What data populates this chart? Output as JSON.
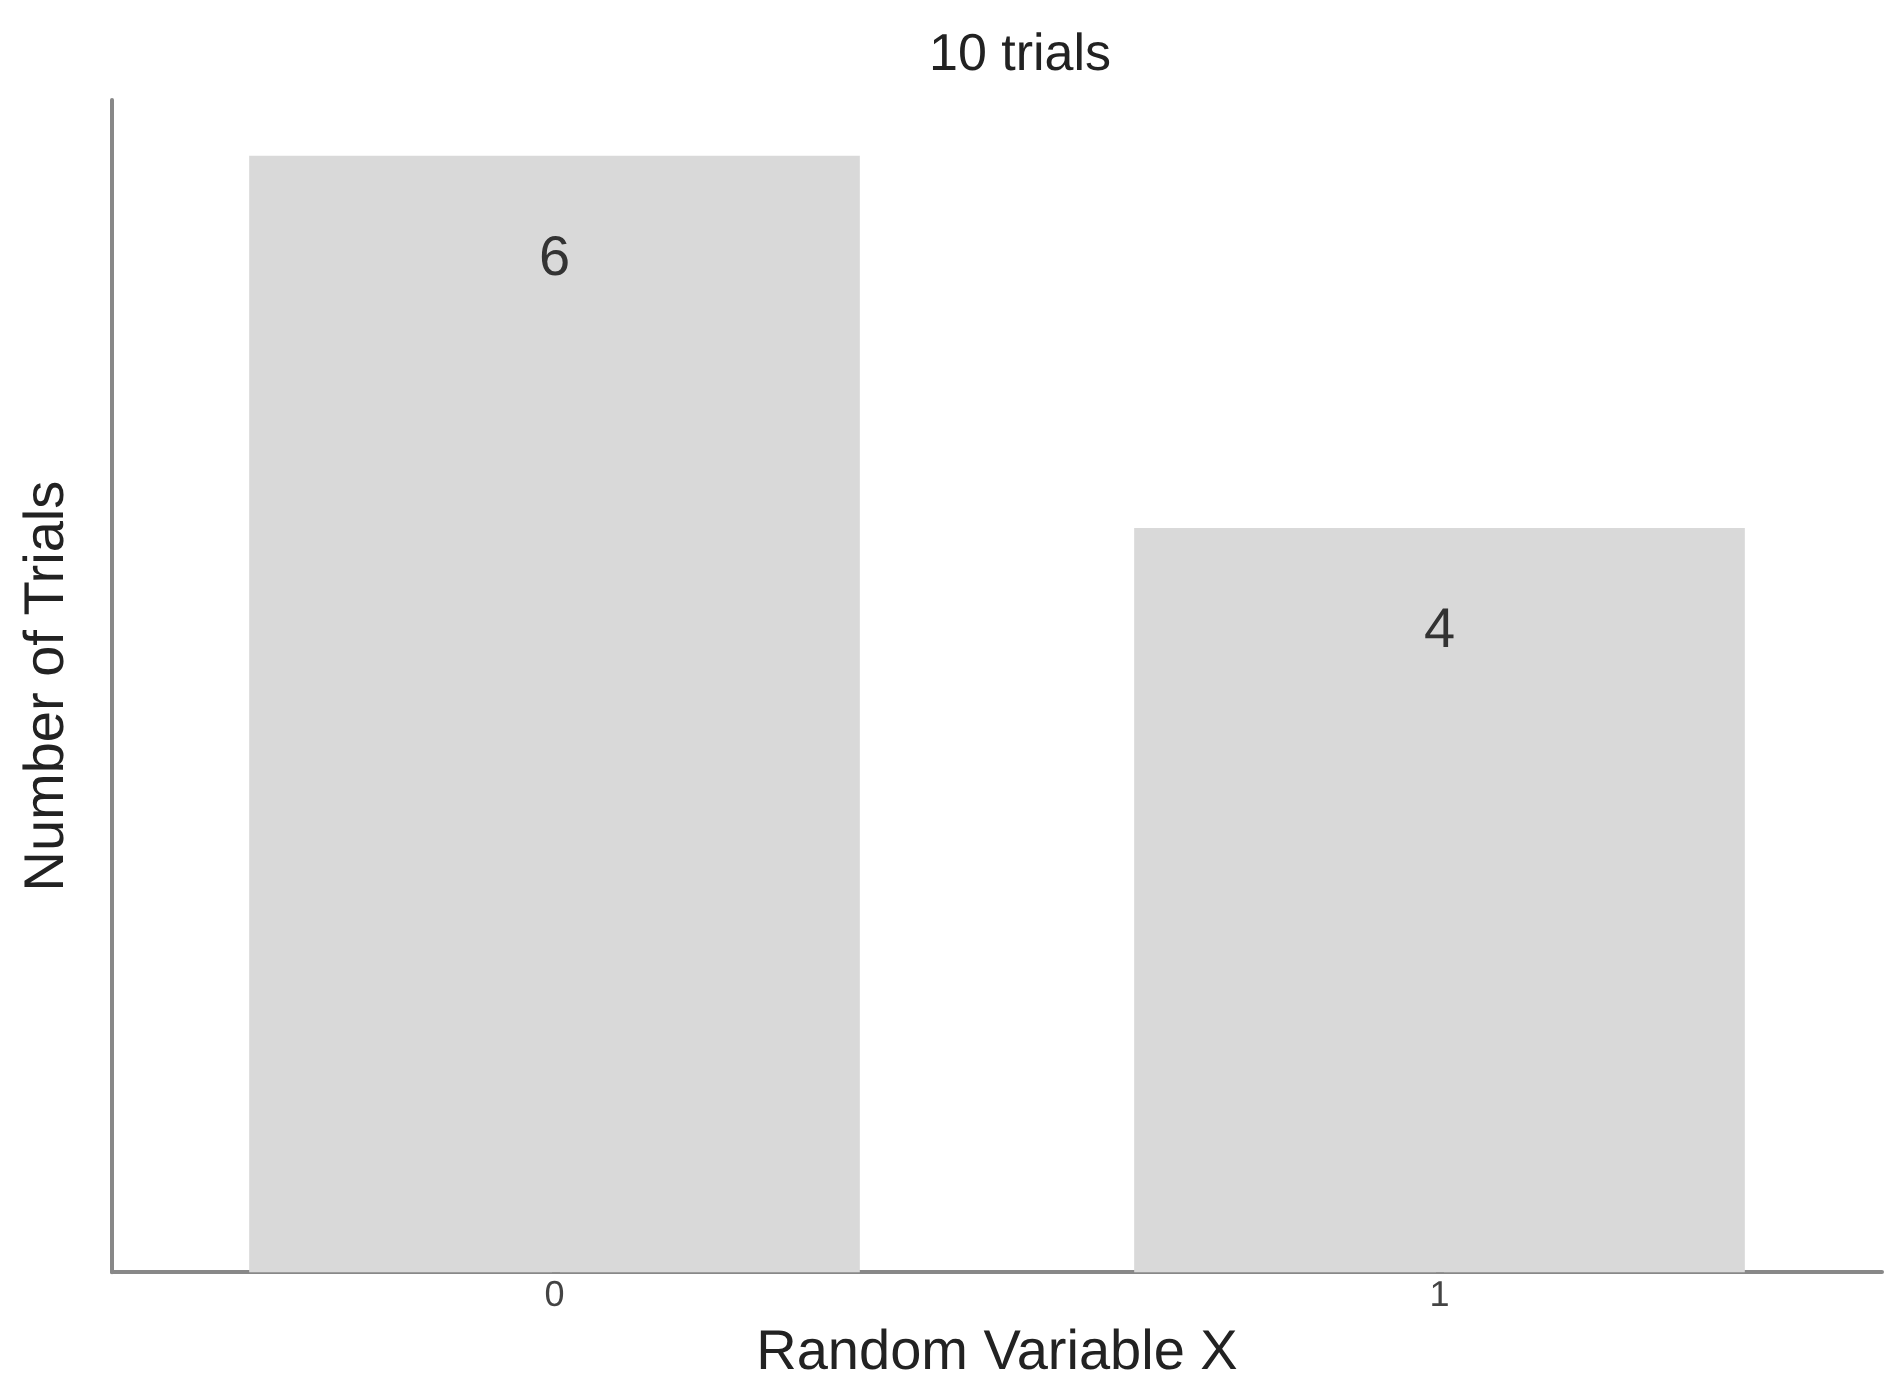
{
  "chart_data": {
    "type": "bar",
    "title": "10 trials",
    "xlabel": "Random Variable X",
    "ylabel": "Number of Trials",
    "categories": [
      "0",
      "1"
    ],
    "values": [
      6,
      4
    ],
    "color": "#d9d9d9",
    "ylim": [
      0,
      6.3
    ],
    "tick_labels": "x",
    "data_labels": true,
    "grid": false
  }
}
